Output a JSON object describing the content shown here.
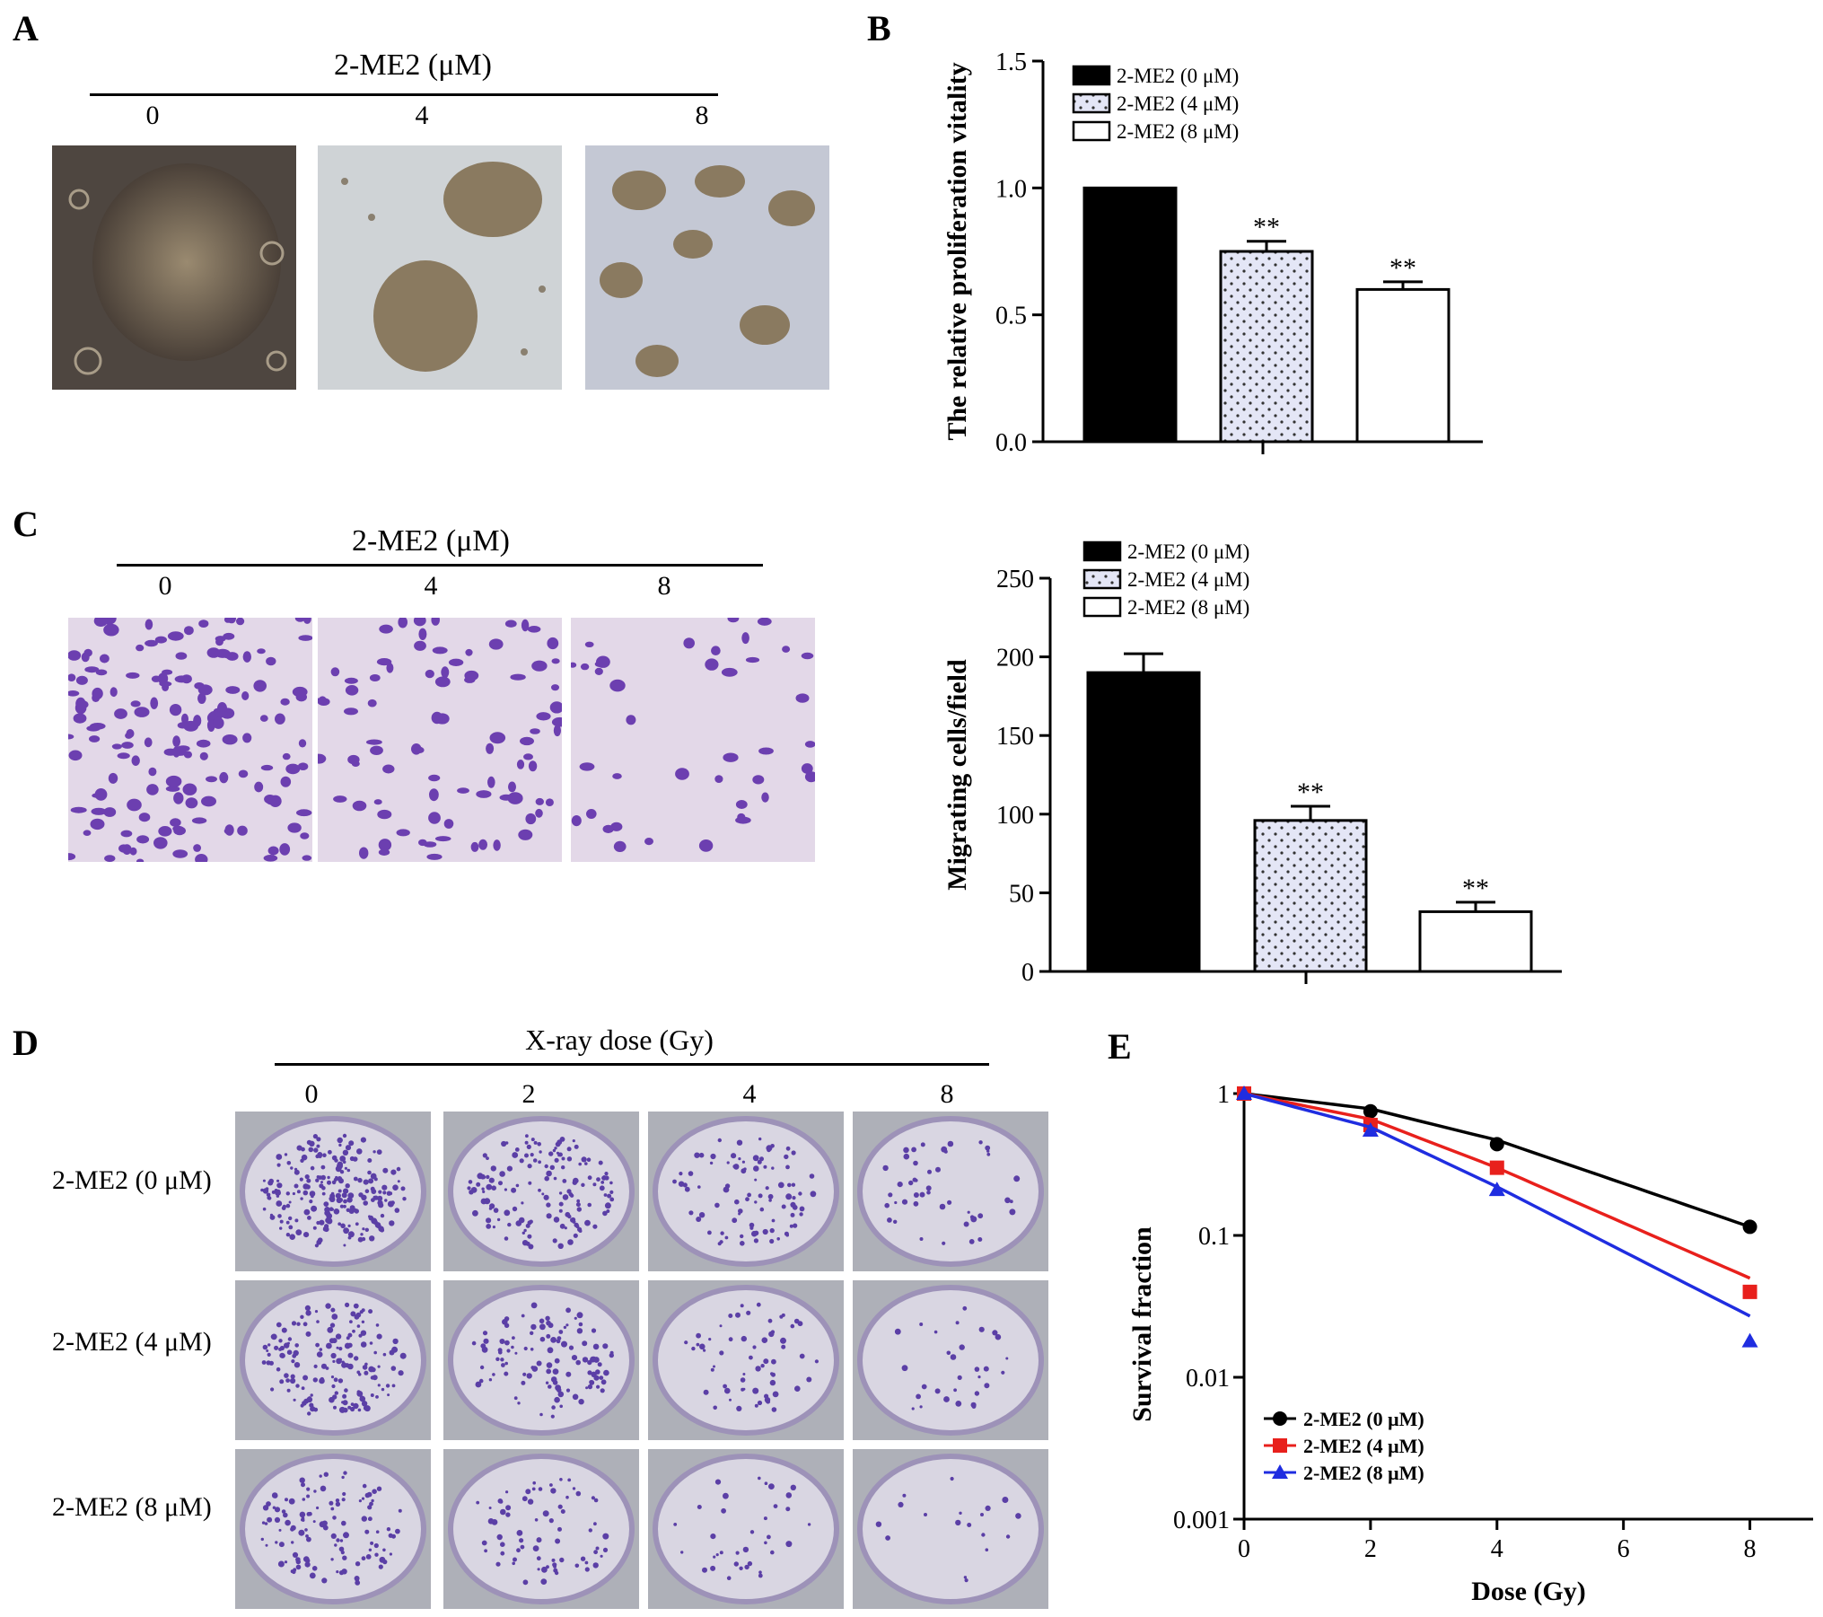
{
  "panels": {
    "A": {
      "letter": "A",
      "header": "2-ME2 (μM)",
      "concentrations": [
        "0",
        "4",
        "8"
      ]
    },
    "B": {
      "letter": "B"
    },
    "C": {
      "letter": "C",
      "header": "2-ME2 (μM)",
      "concentrations": [
        "0",
        "4",
        "8"
      ]
    },
    "D": {
      "letter": "D",
      "header": "X-ray dose (Gy)",
      "doses": [
        "0",
        "2",
        "4",
        "8"
      ],
      "row_labels": [
        "2-ME2 (0 μM)",
        "2-ME2 (4 μM)",
        "2-ME2 (8 μM)"
      ]
    },
    "E": {
      "letter": "E"
    }
  },
  "colors": {
    "black": "#000000",
    "red": "#e8201c",
    "blue": "#1f2de0",
    "colony": "#5b3fa6",
    "well": "#d9d6e2",
    "stain": "#6c3fb0",
    "phase": "#5a5048"
  },
  "chart_data": [
    {
      "panel": "B",
      "type": "bar",
      "categories": [
        "2-ME2 (0 μM)",
        "2-ME2 (4 μM)",
        "2-ME2 (8 μM)"
      ],
      "values": [
        1.0,
        0.75,
        0.6
      ],
      "errors": [
        0.0,
        0.04,
        0.03
      ],
      "significance": [
        "",
        "**",
        "**"
      ],
      "ylabel": "The relative proliferation vitality",
      "ylim": [
        0,
        1.5
      ],
      "yticks": [
        "0.0",
        "0.5",
        "1.0",
        "1.5"
      ],
      "legend": [
        "2-ME2 (0 μM)",
        "2-ME2 (4 μM)",
        "2-ME2 (8 μM)"
      ],
      "legend_position": "top-left"
    },
    {
      "panel": "C",
      "type": "bar",
      "categories": [
        "2-ME2 (0 μM)",
        "2-ME2 (4 μM)",
        "2-ME2 (8 μM)"
      ],
      "values": [
        190,
        96,
        38
      ],
      "errors": [
        12,
        9,
        6
      ],
      "significance": [
        "",
        "**",
        "**"
      ],
      "ylabel": "Migrating cells/field",
      "ylim": [
        0,
        250
      ],
      "yticks": [
        "0",
        "50",
        "100",
        "150",
        "200",
        "250"
      ],
      "legend": [
        "2-ME2 (0 μM)",
        "2-ME2 (4 μM)",
        "2-ME2 (8 μM)"
      ],
      "legend_position": "top-left"
    },
    {
      "panel": "E",
      "type": "line",
      "xlabel": "Dose (Gy)",
      "ylabel": "Survival fraction",
      "xlim": [
        0,
        9
      ],
      "xticks": [
        "0",
        "2",
        "4",
        "6",
        "8"
      ],
      "ylim": [
        0.001,
        1
      ],
      "yscale": "log",
      "yticks": [
        "0.001",
        "0.01",
        "0.1",
        "1"
      ],
      "x": [
        0,
        2,
        4,
        8
      ],
      "series": [
        {
          "name": "2-ME2 (0 μM)",
          "marker": "circle",
          "values": [
            1,
            0.75,
            0.44,
            0.115
          ],
          "fit": [
            1,
            0.78,
            0.47,
            0.115
          ]
        },
        {
          "name": "2-ME2 (4 μM)",
          "marker": "square",
          "values": [
            1,
            0.6,
            0.3,
            0.04
          ],
          "fit": [
            1,
            0.66,
            0.3,
            0.05
          ]
        },
        {
          "name": "2-ME2 (8 μM)",
          "marker": "triangle",
          "values": [
            1,
            0.55,
            0.21,
            0.018
          ],
          "fit": [
            1,
            0.58,
            0.22,
            0.027
          ]
        }
      ],
      "legend_position": "bottom-left"
    }
  ]
}
